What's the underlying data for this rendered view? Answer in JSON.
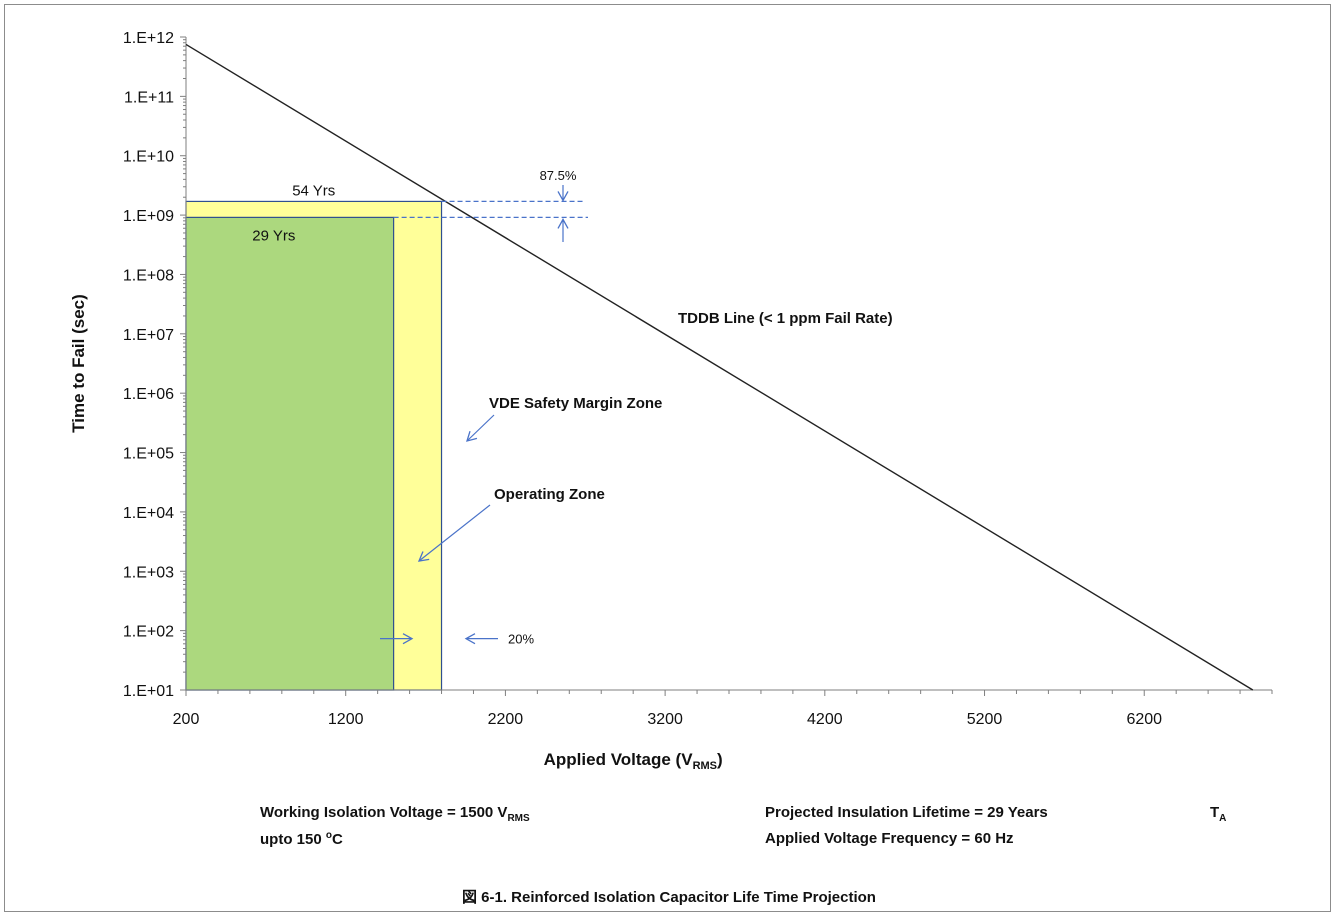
{
  "chart_data": {
    "type": "line",
    "title": "",
    "xlabel": "Applied Voltage (V",
    "xlabel_sub": "RMS",
    "xlabel_close": ")",
    "ylabel": "Time to Fail (sec)",
    "x_ticks": [
      200,
      1200,
      2200,
      3200,
      4200,
      5200,
      6200
    ],
    "xlim": [
      200,
      7000
    ],
    "y_scale": "log",
    "ylim": [
      10,
      1000000000000
    ],
    "y_ticks": [
      "1.E+01",
      "1.E+02",
      "1.E+03",
      "1.E+04",
      "1.E+05",
      "1.E+06",
      "1.E+07",
      "1.E+08",
      "1.E+09",
      "1.E+10",
      "1.E+11",
      "1.E+12"
    ],
    "y_tick_values": [
      10,
      100,
      1000,
      10000,
      100000,
      1000000,
      10000000,
      100000000,
      1000000000,
      10000000000,
      100000000000,
      1000000000000
    ],
    "grid": false,
    "series": [
      {
        "name": "TDDB Line (< 1 ppm Fail Rate)",
        "color": "#222222",
        "points": [
          [
            200,
            750000000000
          ],
          [
            6880,
            10
          ]
        ]
      }
    ],
    "zones": [
      {
        "label": "54 Yrs",
        "name": "VDE Safety Margin Zone",
        "x_max": 1800,
        "y_top": 1700000000,
        "color": "#ffff99"
      },
      {
        "label": "29 Yrs",
        "name": "Operating  Zone",
        "x_max": 1500,
        "y_top": 915000000,
        "color": "#acd87e"
      }
    ],
    "annotations": {
      "pct_top": "87.5%",
      "pct_bottom": "20%",
      "safety_zone": "VDE Safety Margin Zone",
      "operating_zone": "Operating  Zone",
      "tddb": "TDDB Line (< 1 ppm Fail Rate)"
    },
    "accent_color": "#4a73c9"
  },
  "notes": {
    "working_prefix": "Working Isolation Voltage = 1500 V",
    "working_sub": "RMS",
    "temp_prefix": "upto 150 ",
    "temp_sup": "o",
    "temp_suffix": "C",
    "lifetime": "Projected Insulation Lifetime =  29 Years",
    "ta_prefix": "T",
    "ta_sub": "A",
    "frequency": "Applied Voltage Frequency = 60 Hz"
  },
  "caption": "図 6-1. Reinforced Isolation Capacitor Life Time Projection"
}
